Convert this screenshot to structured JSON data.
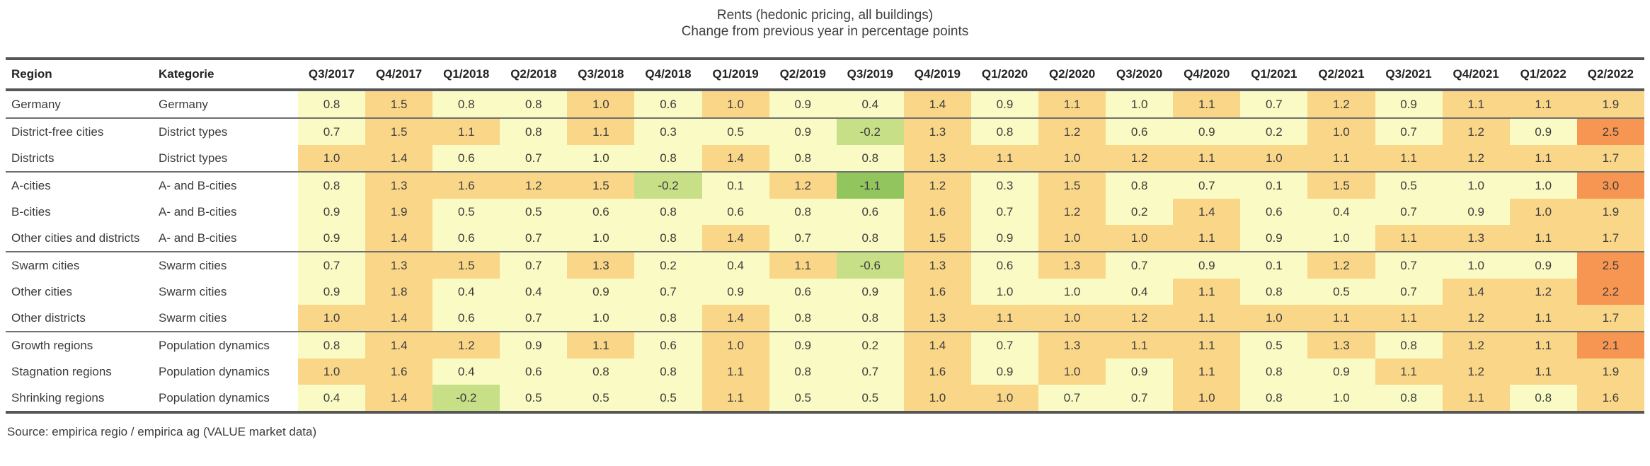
{
  "title": "Rents (hedonic pricing, all buildings)",
  "subtitle": "Change from previous year in percentage points",
  "source_note": "Source: empirica regio / empirica ag (VALUE market data)",
  "columns": {
    "region": "Region",
    "kategorie": "Kategorie"
  },
  "palette": {
    "g2": "#92C55E",
    "g1": "#C7DF87",
    "y": "#FAFAC4",
    "o1": "#FAD689",
    "o2": "#F79652"
  },
  "chart_data": {
    "type": "heatmap",
    "title": "Rents (hedonic pricing, all buildings)",
    "subtitle": "Change from previous year in percentage points",
    "legend_position": "none",
    "grid": false,
    "x": [
      "Q3/2017",
      "Q4/2017",
      "Q1/2018",
      "Q2/2018",
      "Q3/2018",
      "Q4/2018",
      "Q1/2019",
      "Q2/2019",
      "Q3/2019",
      "Q4/2019",
      "Q1/2020",
      "Q2/2020",
      "Q3/2020",
      "Q4/2020",
      "Q1/2021",
      "Q2/2021",
      "Q3/2021",
      "Q4/2021",
      "Q1/2022",
      "Q2/2022"
    ],
    "value_unit": "percentage points",
    "rows": [
      {
        "region": "Germany",
        "kategorie": "Germany",
        "new_group": false,
        "values": [
          0.8,
          1.5,
          0.8,
          0.8,
          1.0,
          0.6,
          1.0,
          0.9,
          0.4,
          1.4,
          0.9,
          1.1,
          1.0,
          1.1,
          0.7,
          1.2,
          0.9,
          1.1,
          1.1,
          1.9
        ],
        "cell_colors": [
          "y",
          "o1",
          "y",
          "y",
          "o1",
          "y",
          "o1",
          "y",
          "y",
          "o1",
          "y",
          "o1",
          "y",
          "o1",
          "y",
          "o1",
          "y",
          "o1",
          "o1",
          "o1"
        ]
      },
      {
        "region": "District-free cities",
        "kategorie": "District types",
        "new_group": true,
        "values": [
          0.7,
          1.5,
          1.1,
          0.8,
          1.1,
          0.3,
          0.5,
          0.9,
          -0.2,
          1.3,
          0.8,
          1.2,
          0.6,
          0.9,
          0.2,
          1.0,
          0.7,
          1.2,
          0.9,
          2.5
        ],
        "cell_colors": [
          "y",
          "o1",
          "o1",
          "y",
          "o1",
          "y",
          "y",
          "y",
          "g1",
          "o1",
          "y",
          "o1",
          "y",
          "y",
          "y",
          "o1",
          "y",
          "o1",
          "y",
          "o2"
        ]
      },
      {
        "region": "Districts",
        "kategorie": "District types",
        "new_group": false,
        "values": [
          1.0,
          1.4,
          0.6,
          0.7,
          1.0,
          0.8,
          1.4,
          0.8,
          0.8,
          1.3,
          1.1,
          1.0,
          1.2,
          1.1,
          1.0,
          1.1,
          1.1,
          1.2,
          1.1,
          1.7
        ],
        "cell_colors": [
          "o1",
          "o1",
          "y",
          "y",
          "y",
          "y",
          "o1",
          "y",
          "y",
          "o1",
          "o1",
          "o1",
          "o1",
          "o1",
          "o1",
          "o1",
          "o1",
          "o1",
          "o1",
          "o1"
        ]
      },
      {
        "region": "A-cities",
        "kategorie": "A- and B-cities",
        "new_group": true,
        "values": [
          0.8,
          1.3,
          1.6,
          1.2,
          1.5,
          -0.2,
          0.1,
          1.2,
          -1.1,
          1.2,
          0.3,
          1.5,
          0.8,
          0.7,
          0.1,
          1.5,
          0.5,
          1.0,
          1.0,
          3.0
        ],
        "cell_colors": [
          "y",
          "o1",
          "o1",
          "o1",
          "o1",
          "g1",
          "y",
          "o1",
          "g2",
          "o1",
          "y",
          "o1",
          "y",
          "y",
          "y",
          "o1",
          "y",
          "y",
          "y",
          "o2"
        ]
      },
      {
        "region": "B-cities",
        "kategorie": "A- and B-cities",
        "new_group": false,
        "values": [
          0.9,
          1.9,
          0.5,
          0.5,
          0.6,
          0.8,
          0.6,
          0.8,
          0.6,
          1.6,
          0.7,
          1.2,
          0.2,
          1.4,
          0.6,
          0.4,
          0.7,
          0.9,
          1.0,
          1.9
        ],
        "cell_colors": [
          "y",
          "o1",
          "y",
          "y",
          "y",
          "y",
          "y",
          "y",
          "y",
          "o1",
          "y",
          "o1",
          "y",
          "o1",
          "y",
          "y",
          "y",
          "y",
          "o1",
          "o1"
        ]
      },
      {
        "region": "Other cities and districts",
        "kategorie": "A- and B-cities",
        "new_group": false,
        "values": [
          0.9,
          1.4,
          0.6,
          0.7,
          1.0,
          0.8,
          1.4,
          0.7,
          0.8,
          1.5,
          0.9,
          1.0,
          1.0,
          1.1,
          0.9,
          1.0,
          1.1,
          1.3,
          1.1,
          1.7
        ],
        "cell_colors": [
          "y",
          "o1",
          "y",
          "y",
          "y",
          "y",
          "o1",
          "y",
          "y",
          "o1",
          "y",
          "o1",
          "o1",
          "o1",
          "y",
          "y",
          "o1",
          "o1",
          "o1",
          "o1"
        ]
      },
      {
        "region": "Swarm cities",
        "kategorie": "Swarm cities",
        "new_group": true,
        "values": [
          0.7,
          1.3,
          1.5,
          0.7,
          1.3,
          0.2,
          0.4,
          1.1,
          -0.6,
          1.3,
          0.6,
          1.3,
          0.7,
          0.9,
          0.1,
          1.2,
          0.7,
          1.0,
          0.9,
          2.5
        ],
        "cell_colors": [
          "y",
          "o1",
          "o1",
          "y",
          "o1",
          "y",
          "y",
          "o1",
          "g1",
          "o1",
          "y",
          "o1",
          "y",
          "y",
          "y",
          "o1",
          "y",
          "y",
          "y",
          "o2"
        ]
      },
      {
        "region": "Other cities",
        "kategorie": "Swarm cities",
        "new_group": false,
        "values": [
          0.9,
          1.8,
          0.4,
          0.4,
          0.9,
          0.7,
          0.9,
          0.6,
          0.9,
          1.6,
          1.0,
          1.0,
          0.4,
          1.1,
          0.8,
          0.5,
          0.7,
          1.4,
          1.2,
          2.2
        ],
        "cell_colors": [
          "y",
          "o1",
          "y",
          "y",
          "y",
          "y",
          "y",
          "y",
          "y",
          "o1",
          "y",
          "y",
          "y",
          "o1",
          "y",
          "y",
          "y",
          "o1",
          "o1",
          "o2"
        ]
      },
      {
        "region": "Other districts",
        "kategorie": "Swarm cities",
        "new_group": false,
        "values": [
          1.0,
          1.4,
          0.6,
          0.7,
          1.0,
          0.8,
          1.4,
          0.8,
          0.8,
          1.3,
          1.1,
          1.0,
          1.2,
          1.1,
          1.0,
          1.1,
          1.1,
          1.2,
          1.1,
          1.7
        ],
        "cell_colors": [
          "o1",
          "o1",
          "y",
          "y",
          "y",
          "y",
          "o1",
          "y",
          "y",
          "o1",
          "o1",
          "o1",
          "o1",
          "o1",
          "o1",
          "o1",
          "o1",
          "o1",
          "o1",
          "o1"
        ]
      },
      {
        "region": "Growth regions",
        "kategorie": "Population dynamics",
        "new_group": true,
        "values": [
          0.8,
          1.4,
          1.2,
          0.9,
          1.1,
          0.6,
          1.0,
          0.9,
          0.2,
          1.4,
          0.7,
          1.3,
          1.1,
          1.1,
          0.5,
          1.3,
          0.8,
          1.2,
          1.1,
          2.1
        ],
        "cell_colors": [
          "y",
          "o1",
          "o1",
          "y",
          "o1",
          "y",
          "o1",
          "y",
          "y",
          "o1",
          "y",
          "o1",
          "o1",
          "o1",
          "y",
          "o1",
          "y",
          "o1",
          "o1",
          "o2"
        ]
      },
      {
        "region": "Stagnation regions",
        "kategorie": "Population dynamics",
        "new_group": false,
        "values": [
          1.0,
          1.6,
          0.4,
          0.6,
          0.8,
          0.8,
          1.1,
          0.8,
          0.7,
          1.6,
          0.9,
          1.0,
          0.9,
          1.1,
          0.8,
          0.9,
          1.1,
          1.2,
          1.1,
          1.9
        ],
        "cell_colors": [
          "o1",
          "o1",
          "y",
          "y",
          "y",
          "y",
          "o1",
          "y",
          "y",
          "o1",
          "y",
          "o1",
          "y",
          "o1",
          "y",
          "y",
          "o1",
          "o1",
          "o1",
          "o1"
        ]
      },
      {
        "region": "Shrinking regions",
        "kategorie": "Population dynamics",
        "new_group": false,
        "values": [
          0.4,
          1.4,
          -0.2,
          0.5,
          0.5,
          0.5,
          1.1,
          0.5,
          0.5,
          1.0,
          1.0,
          0.7,
          0.7,
          1.0,
          0.8,
          1.0,
          0.8,
          1.1,
          0.8,
          1.6
        ],
        "cell_colors": [
          "y",
          "o1",
          "g1",
          "y",
          "y",
          "y",
          "o1",
          "y",
          "y",
          "o1",
          "o1",
          "y",
          "y",
          "o1",
          "y",
          "y",
          "y",
          "o1",
          "y",
          "o1"
        ]
      }
    ]
  }
}
